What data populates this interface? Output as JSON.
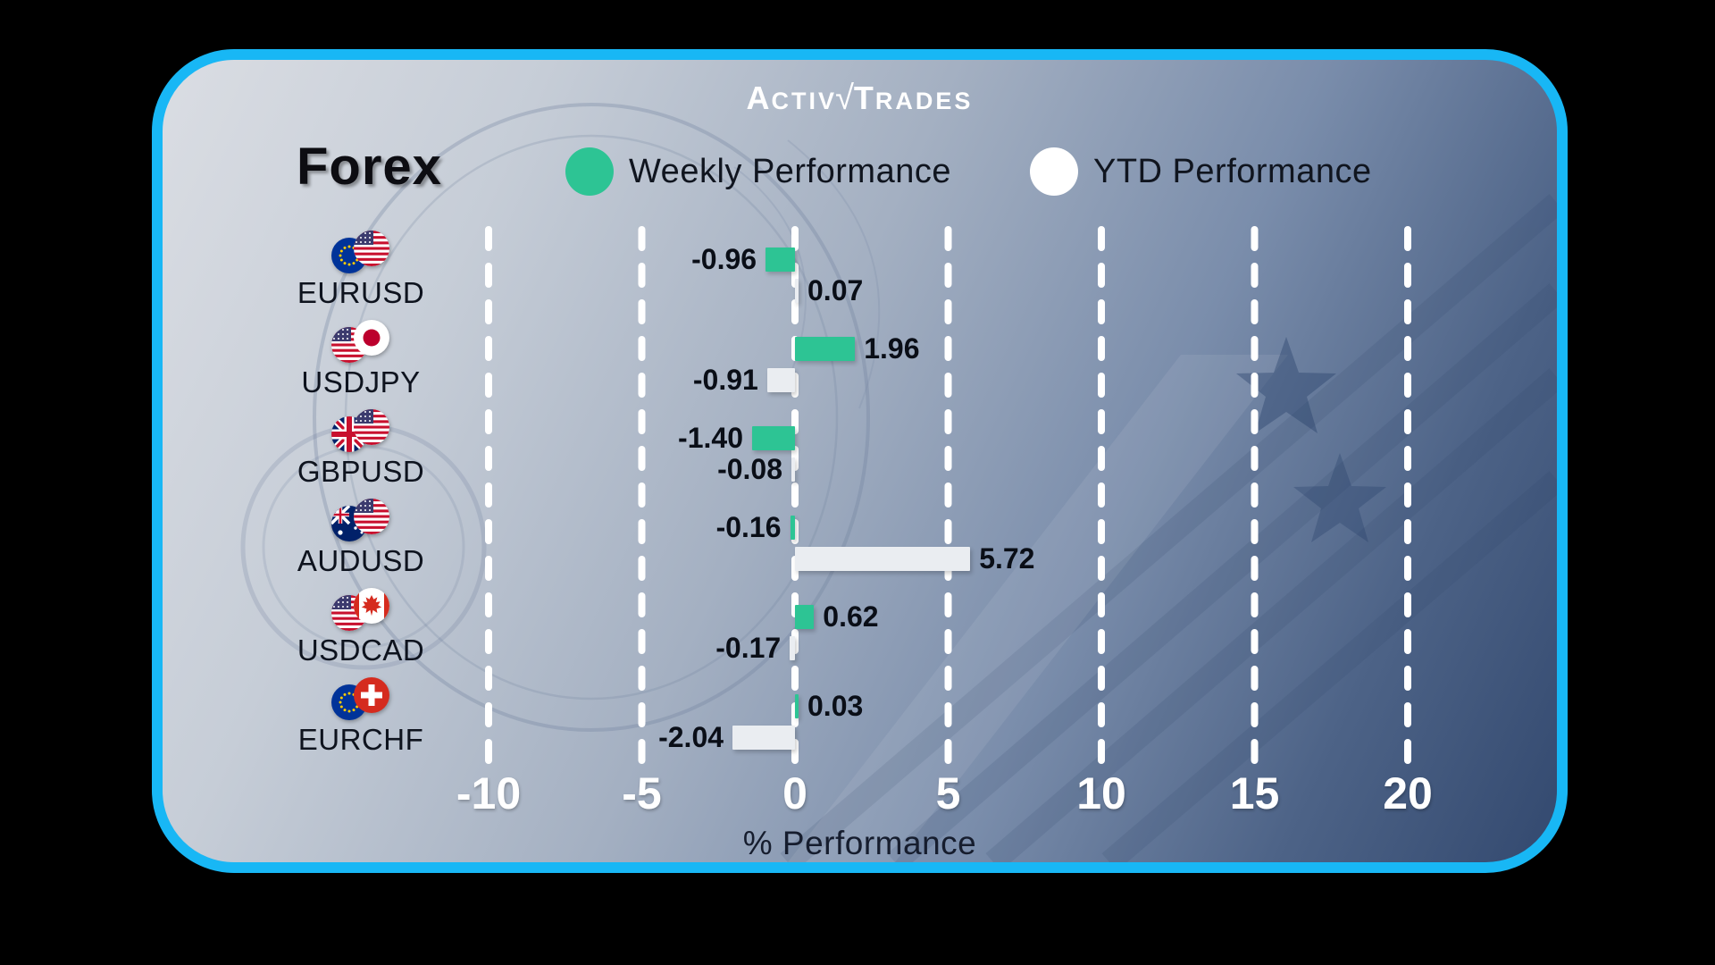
{
  "logo": {
    "parts": [
      "A",
      "CTIV",
      "√",
      "T",
      "RADES"
    ],
    "full": "ActivTrades"
  },
  "header": {
    "title": "Forex"
  },
  "colors": {
    "border": "#18b7f5",
    "weekly_green": "#2dc494",
    "ytd_white": "#eaedf1",
    "gridline": "#ffffff",
    "tick_text": "#ffffff",
    "value_text": "#0a0e17"
  },
  "chart_data": {
    "type": "bar",
    "orientation": "horizontal",
    "title": "Forex",
    "categories": [
      "EURUSD",
      "USDJPY",
      "GBPUSD",
      "AUDUSD",
      "USDCAD",
      "EURCHF"
    ],
    "pair_flags": [
      [
        "eu",
        "us"
      ],
      [
        "us",
        "jp"
      ],
      [
        "gb",
        "us"
      ],
      [
        "au",
        "us"
      ],
      [
        "us",
        "ca"
      ],
      [
        "eu",
        "ch"
      ]
    ],
    "series": [
      {
        "name": "Weekly Performance",
        "color": "#2dc494",
        "values": [
          -0.96,
          1.96,
          -1.4,
          -0.16,
          0.62,
          0.03
        ]
      },
      {
        "name": "YTD Performance",
        "color": "#eaedf1",
        "values": [
          0.07,
          -0.91,
          -0.08,
          5.72,
          -0.17,
          -2.04
        ]
      }
    ],
    "xticks": [
      -10,
      -5,
      0,
      5,
      10,
      15,
      20
    ],
    "xlim": [
      -12.5,
      22.5
    ],
    "xlabel": "% Performance",
    "grid": "dashed-vertical-white",
    "legend_position": "top",
    "value_labels": "outside-end"
  }
}
